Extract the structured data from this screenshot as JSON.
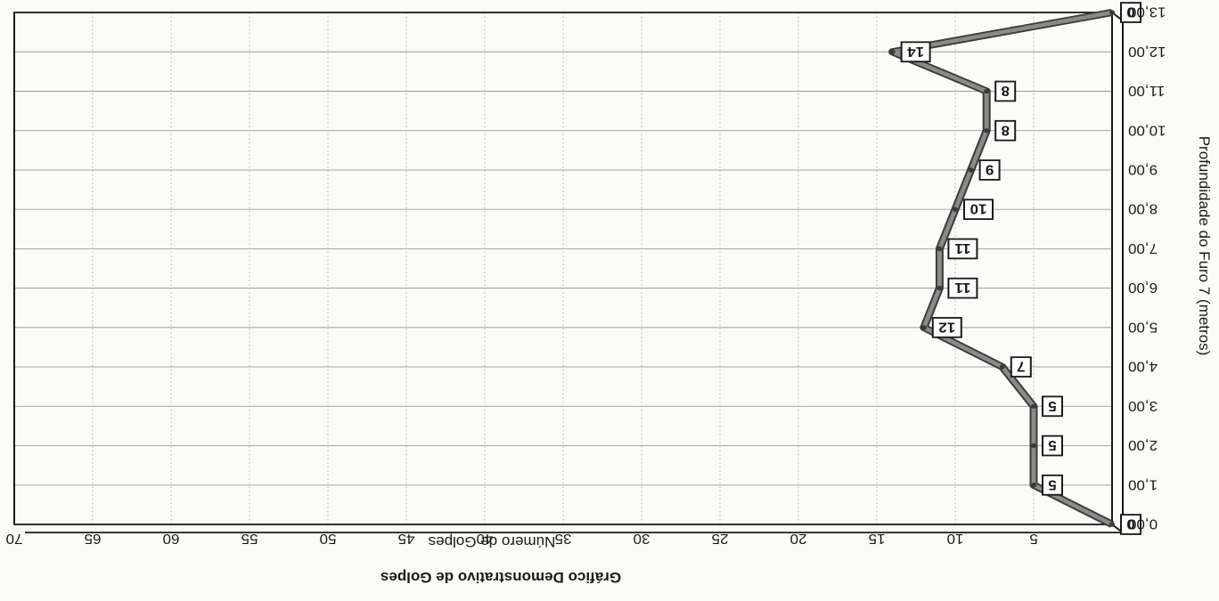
{
  "chart_data": {
    "type": "line",
    "title": "Gráfico Demonstrativo de Golpes",
    "xlabel": "Número de Golpes",
    "ylabel": "Profundidade do Furo 7 (metros)",
    "xlim": [
      0,
      70
    ],
    "ylim": [
      0,
      13
    ],
    "x_ticks": [
      "5",
      "10",
      "15",
      "20",
      "25",
      "30",
      "35",
      "40",
      "45",
      "50",
      "55",
      "60",
      "65",
      "70"
    ],
    "y_ticks": [
      "0,00",
      "1,00",
      "2,00",
      "3,00",
      "4,00",
      "5,00",
      "6,00",
      "7,00",
      "8,00",
      "9,00",
      "10,00",
      "11,00",
      "12,00",
      "13,00"
    ],
    "y_reversed": true,
    "grid": true,
    "series": [
      {
        "color": "#8a8a8a",
        "points": [
          {
            "depth": 0,
            "golpes": 0
          },
          {
            "depth": 1,
            "golpes": 5
          },
          {
            "depth": 2,
            "golpes": 5
          },
          {
            "depth": 3,
            "golpes": 5
          },
          {
            "depth": 4,
            "golpes": 7
          },
          {
            "depth": 5,
            "golpes": 12
          },
          {
            "depth": 6,
            "golpes": 11
          },
          {
            "depth": 7,
            "golpes": 11
          },
          {
            "depth": 8,
            "golpes": 10
          },
          {
            "depth": 9,
            "golpes": 9
          },
          {
            "depth": 10,
            "golpes": 8
          },
          {
            "depth": 11,
            "golpes": 8
          },
          {
            "depth": 12,
            "golpes": 14
          },
          {
            "depth": 13,
            "golpes": 0
          }
        ]
      }
    ],
    "data_labels": [
      "0",
      "5",
      "5",
      "5",
      "7",
      "12",
      "11",
      "11",
      "10",
      "9",
      "8",
      "8",
      "14",
      "0"
    ]
  }
}
